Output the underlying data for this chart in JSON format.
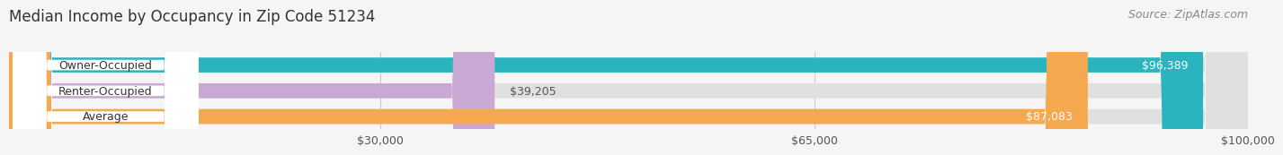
{
  "title": "Median Income by Occupancy in Zip Code 51234",
  "source": "Source: ZipAtlas.com",
  "categories": [
    "Owner-Occupied",
    "Renter-Occupied",
    "Average"
  ],
  "values": [
    96389,
    39205,
    87083
  ],
  "bar_colors": [
    "#2ab5be",
    "#c9a8d4",
    "#f5a94e"
  ],
  "value_labels": [
    "$96,389",
    "$39,205",
    "$87,083"
  ],
  "value_inside": [
    true,
    false,
    true
  ],
  "xmax": 100000,
  "xticks": [
    30000,
    65000,
    100000
  ],
  "xticklabels": [
    "$30,000",
    "$65,000",
    "$100,000"
  ],
  "background_color": "#f5f5f5",
  "bar_background": "#e0e0e0",
  "title_fontsize": 12,
  "source_fontsize": 9,
  "label_fontsize": 9,
  "value_fontsize": 9
}
